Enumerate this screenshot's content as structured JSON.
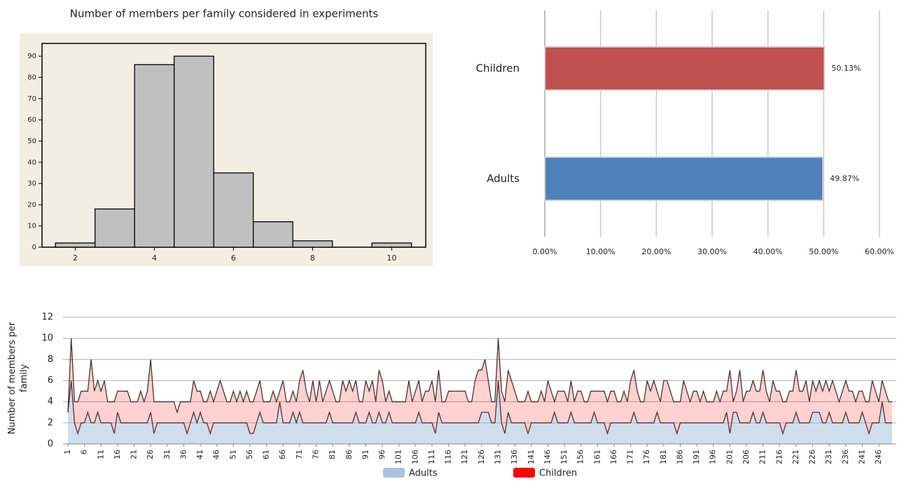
{
  "chart_data": [
    {
      "type": "histogram",
      "title": "Number  of members  per family considered  in experiments",
      "bins": [
        1.5,
        2.5,
        3.5,
        4.5,
        5.5,
        6.5,
        7.5,
        8.5,
        9.5,
        10.5
      ],
      "values": [
        2,
        18,
        86,
        90,
        35,
        12,
        3,
        0,
        2
      ],
      "color": "#c0c0c0",
      "background": "#f3eee2",
      "xlim": [
        1.16,
        10.86
      ],
      "xticks": [
        2,
        4,
        6,
        8,
        10
      ],
      "ylim": [
        0,
        96
      ],
      "yticks": [
        0,
        10,
        20,
        30,
        40,
        50,
        60,
        70,
        80,
        90
      ]
    },
    {
      "type": "bar",
      "orientation": "horizontal",
      "categories": [
        "Children",
        "Adults"
      ],
      "values": [
        50.13,
        49.87
      ],
      "value_labels": [
        "50.13%",
        "49.87%"
      ],
      "colors": [
        "#c0504d",
        "#4f81bd"
      ],
      "xlim": [
        0,
        60
      ],
      "xticks": [
        {
          "value": 0,
          "label": "0.00%"
        },
        {
          "value": 10,
          "label": "10.00%"
        },
        {
          "value": 20,
          "label": "20.00%"
        },
        {
          "value": 30,
          "label": "30.00%"
        },
        {
          "value": 40,
          "label": "40.00%"
        },
        {
          "value": 50,
          "label": "50.00%"
        },
        {
          "value": 60,
          "label": "60.00%"
        }
      ],
      "grid": true
    },
    {
      "type": "area",
      "stacked": true,
      "ylabel": "Number  of members  per family",
      "x": [
        1,
        2,
        3,
        4,
        5,
        6,
        7,
        8,
        9,
        10,
        11,
        12,
        13,
        14,
        15,
        16,
        17,
        18,
        19,
        20,
        21,
        22,
        23,
        24,
        25,
        26,
        27,
        28,
        29,
        30,
        31,
        32,
        33,
        34,
        35,
        36,
        37,
        38,
        39,
        40,
        41,
        42,
        43,
        44,
        45,
        46,
        47,
        48,
        49,
        50,
        51,
        52,
        53,
        54,
        55,
        56,
        57,
        58,
        59,
        60,
        61,
        62,
        63,
        64,
        65,
        66,
        67,
        68,
        69,
        70,
        71,
        72,
        73,
        74,
        75,
        76,
        77,
        78,
        79,
        80,
        81,
        82,
        83,
        84,
        85,
        86,
        87,
        88,
        89,
        90,
        91,
        92,
        93,
        94,
        95,
        96,
        97,
        98,
        99,
        100,
        101,
        102,
        103,
        104,
        105,
        106,
        107,
        108,
        109,
        110,
        111,
        112,
        113,
        114,
        115,
        116,
        117,
        118,
        119,
        120,
        121,
        122,
        123,
        124,
        125,
        126,
        127,
        128,
        129,
        130,
        131,
        132,
        133,
        134,
        135,
        136,
        137,
        138,
        139,
        140,
        141,
        142,
        143,
        144,
        145,
        146,
        147,
        148,
        149,
        150,
        151,
        152,
        153,
        154,
        155,
        156,
        157,
        158,
        159,
        160,
        161,
        162,
        163,
        164,
        165,
        166,
        167,
        168,
        169,
        170,
        171,
        172,
        173,
        174,
        175,
        176,
        177,
        178,
        179,
        180,
        181,
        182,
        183,
        184,
        185,
        186,
        187,
        188,
        189,
        190,
        191,
        192,
        193,
        194,
        195,
        196,
        197,
        198,
        199,
        200,
        201,
        202,
        203,
        204,
        205,
        206,
        207,
        208,
        209,
        210,
        211,
        212,
        213,
        214,
        215,
        216,
        217,
        218,
        219,
        220,
        221,
        222,
        223,
        224,
        225,
        226,
        227,
        228,
        229,
        230,
        231,
        232,
        233,
        234,
        235,
        236,
        237,
        238,
        239,
        240,
        241,
        242,
        243,
        244,
        245,
        246,
        247,
        248,
        249,
        250
      ],
      "xlim": [
        1,
        250
      ],
      "xticks": [
        1,
        6,
        11,
        16,
        21,
        26,
        31,
        36,
        41,
        46,
        51,
        56,
        61,
        66,
        71,
        76,
        81,
        86,
        91,
        96,
        101,
        106,
        111,
        116,
        121,
        126,
        131,
        136,
        141,
        146,
        151,
        156,
        161,
        166,
        171,
        176,
        181,
        186,
        191,
        196,
        201,
        206,
        211,
        216,
        221,
        226,
        231,
        236,
        241,
        246
      ],
      "ylim": [
        0,
        12
      ],
      "yticks": [
        0,
        2,
        4,
        6,
        8,
        10,
        12
      ],
      "grid": true,
      "line_color": "#4a3232",
      "series": [
        {
          "name": "Adults",
          "color": "#95b3d7",
          "values": [
            3,
            6,
            2,
            1,
            2,
            2,
            3,
            2,
            2,
            3,
            2,
            2,
            2,
            2,
            1,
            3,
            2,
            2,
            2,
            2,
            2,
            2,
            2,
            2,
            2,
            3,
            1,
            2,
            2,
            2,
            2,
            2,
            2,
            2,
            2,
            2,
            1,
            2,
            3,
            2,
            3,
            2,
            2,
            1,
            2,
            2,
            2,
            2,
            2,
            2,
            2,
            2,
            2,
            2,
            2,
            1,
            1,
            2,
            3,
            2,
            2,
            2,
            2,
            2,
            4,
            2,
            2,
            2,
            3,
            2,
            3,
            2,
            2,
            2,
            2,
            2,
            2,
            2,
            2,
            3,
            2,
            2,
            2,
            2,
            2,
            2,
            2,
            3,
            2,
            2,
            2,
            3,
            2,
            2,
            3,
            2,
            2,
            3,
            2,
            2,
            2,
            2,
            2,
            2,
            2,
            2,
            3,
            2,
            2,
            2,
            2,
            1,
            3,
            2,
            2,
            2,
            2,
            2,
            2,
            2,
            2,
            2,
            2,
            2,
            2,
            3,
            3,
            3,
            2,
            2,
            6,
            2,
            1,
            3,
            2,
            2,
            2,
            2,
            2,
            1,
            2,
            2,
            2,
            2,
            2,
            2,
            2,
            3,
            2,
            2,
            2,
            2,
            3,
            2,
            2,
            2,
            2,
            2,
            2,
            3,
            2,
            2,
            2,
            1,
            2,
            2,
            2,
            2,
            2,
            2,
            2,
            3,
            2,
            2,
            2,
            2,
            2,
            2,
            3,
            2,
            2,
            2,
            2,
            2,
            1,
            2,
            2,
            2,
            2,
            2,
            2,
            2,
            2,
            2,
            2,
            2,
            2,
            2,
            2,
            3,
            1,
            3,
            3,
            2,
            2,
            2,
            2,
            3,
            2,
            2,
            3,
            2,
            2,
            2,
            2,
            2,
            1,
            2,
            2,
            2,
            3,
            2,
            2,
            2,
            2,
            3,
            3,
            3,
            2,
            2,
            3,
            2,
            2,
            2,
            2,
            3,
            2,
            2,
            2,
            2,
            3,
            2,
            1,
            2,
            2,
            2,
            4,
            2,
            2,
            2
          ]
        },
        {
          "name": "Children",
          "color": "#ff0000",
          "values": [
            0,
            4,
            2,
            3,
            3,
            3,
            2,
            6,
            3,
            3,
            3,
            4,
            2,
            2,
            3,
            2,
            3,
            3,
            3,
            2,
            2,
            2,
            3,
            2,
            3,
            5,
            3,
            2,
            2,
            2,
            2,
            2,
            2,
            1,
            2,
            2,
            3,
            2,
            3,
            3,
            2,
            2,
            2,
            4,
            2,
            3,
            4,
            3,
            2,
            2,
            3,
            2,
            3,
            2,
            3,
            3,
            3,
            3,
            3,
            2,
            2,
            2,
            3,
            2,
            1,
            4,
            2,
            2,
            2,
            2,
            3,
            5,
            3,
            2,
            4,
            2,
            4,
            2,
            3,
            3,
            3,
            2,
            2,
            4,
            3,
            4,
            3,
            3,
            2,
            2,
            4,
            2,
            4,
            2,
            4,
            4,
            2,
            2,
            2,
            2,
            2,
            2,
            2,
            4,
            2,
            3,
            3,
            2,
            3,
            3,
            4,
            3,
            4,
            2,
            2,
            3,
            3,
            3,
            3,
            3,
            3,
            2,
            2,
            4,
            5,
            4,
            5,
            3,
            2,
            2,
            4,
            3,
            3,
            4,
            4,
            3,
            2,
            2,
            2,
            4,
            2,
            2,
            2,
            3,
            2,
            4,
            3,
            1,
            3,
            3,
            3,
            2,
            3,
            2,
            3,
            3,
            2,
            2,
            3,
            2,
            3,
            3,
            3,
            3,
            3,
            3,
            2,
            2,
            3,
            2,
            4,
            4,
            3,
            2,
            2,
            4,
            3,
            4,
            2,
            2,
            4,
            4,
            3,
            2,
            3,
            2,
            4,
            3,
            2,
            3,
            3,
            2,
            3,
            2,
            2,
            2,
            3,
            2,
            3,
            2,
            6,
            1,
            2,
            5,
            2,
            3,
            3,
            3,
            3,
            3,
            4,
            3,
            2,
            4,
            3,
            3,
            3,
            2,
            3,
            3,
            4,
            3,
            3,
            4,
            2,
            3,
            2,
            3,
            3,
            4,
            2,
            4,
            3,
            2,
            3,
            3,
            3,
            3,
            2,
            3,
            2,
            2,
            3,
            4,
            3,
            2,
            2,
            3,
            2,
            2
          ]
        }
      ]
    }
  ]
}
